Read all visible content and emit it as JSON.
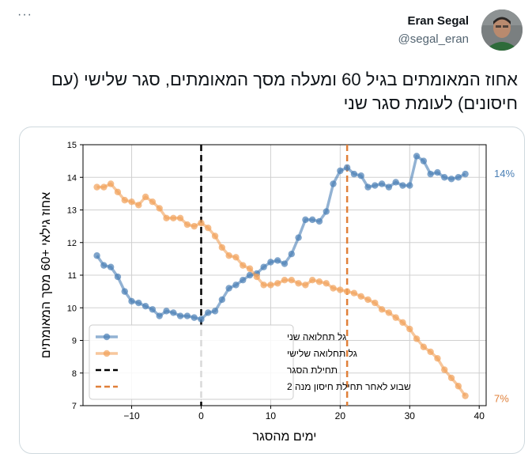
{
  "menu": {
    "icon": "more-dots-icon",
    "label": "···"
  },
  "author": {
    "name": "Eran Segal",
    "handle": "@segal_eran",
    "avatar_icon": "avatar-photo"
  },
  "tweet": {
    "text": "אחוז המאומתים בגיל 60 ומעלה מסך המאומתים, סגר שלישי (עם חיסונים) לעומת סגר שני"
  },
  "colors": {
    "blue": "#4a7fb5",
    "orange": "#f1a15a",
    "grid": "#d0d0d0",
    "black": "#000000",
    "vline_orange": "#e0803a"
  },
  "chart_data": {
    "type": "line",
    "xlabel": "ימים מהסגר",
    "ylabel": "אחוז גילאי +60 מסך המאומתים",
    "xlim": [
      -17,
      41
    ],
    "ylim": [
      7,
      15
    ],
    "xticks": [
      -10,
      0,
      10,
      20,
      30,
      40
    ],
    "xtick_labels": [
      "−10",
      "0",
      "10",
      "20",
      "30",
      "40"
    ],
    "yticks": [
      7,
      8,
      9,
      10,
      11,
      12,
      13,
      14,
      15
    ],
    "grid": true,
    "legend_position": "bottom-left",
    "annotations": [
      {
        "text": "14%",
        "series": "second_wave"
      },
      {
        "text": "7%",
        "series": "third_wave"
      }
    ],
    "vlines": [
      {
        "x": 0,
        "style": "dashed",
        "color": "black",
        "label": "תחילת הסגר"
      },
      {
        "x": 21,
        "style": "dashed",
        "color": "orange",
        "label": "שבוע לאחר תחילת חיסון מנה 2"
      }
    ],
    "series": [
      {
        "name": "גל תחלואה שני",
        "color": "blue",
        "x": [
          -15,
          -14,
          -13,
          -12,
          -11,
          -10,
          -9,
          -8,
          -7,
          -6,
          -5,
          -4,
          -3,
          -2,
          -1,
          0,
          1,
          2,
          3,
          4,
          5,
          6,
          7,
          8,
          9,
          10,
          11,
          12,
          13,
          14,
          15,
          16,
          17,
          18,
          19,
          20,
          21,
          22,
          23,
          24,
          25,
          26,
          27,
          28,
          29,
          30,
          31,
          32,
          33,
          34,
          35,
          36,
          37,
          38
        ],
        "y": [
          11.6,
          11.3,
          11.25,
          10.95,
          10.5,
          10.2,
          10.15,
          10.05,
          9.95,
          9.75,
          9.9,
          9.85,
          9.75,
          9.75,
          9.7,
          9.65,
          9.85,
          9.9,
          10.25,
          10.6,
          10.7,
          10.85,
          11.0,
          11.05,
          11.25,
          11.4,
          11.45,
          11.35,
          11.65,
          12.15,
          12.7,
          12.7,
          12.65,
          12.95,
          13.8,
          14.2,
          14.3,
          14.1,
          14.05,
          13.7,
          13.75,
          13.8,
          13.7,
          13.85,
          13.75,
          13.75,
          14.65,
          14.5,
          14.1,
          14.15,
          14.0,
          13.95,
          14.0,
          14.1
        ]
      },
      {
        "name": "גל תחלואה שלישי",
        "color": "orange",
        "x": [
          -15,
          -14,
          -13,
          -12,
          -11,
          -10,
          -9,
          -8,
          -7,
          -6,
          -5,
          -4,
          -3,
          -2,
          -1,
          0,
          1,
          2,
          3,
          4,
          5,
          6,
          7,
          8,
          9,
          10,
          11,
          12,
          13,
          14,
          15,
          16,
          17,
          18,
          19,
          20,
          21,
          22,
          23,
          24,
          25,
          26,
          27,
          28,
          29,
          30,
          31,
          32,
          33,
          34,
          35,
          36,
          37,
          38
        ],
        "y": [
          13.7,
          13.7,
          13.8,
          13.55,
          13.3,
          13.25,
          13.15,
          13.4,
          13.25,
          13.05,
          12.75,
          12.75,
          12.75,
          12.55,
          12.5,
          12.6,
          12.45,
          12.2,
          11.85,
          11.6,
          11.55,
          11.3,
          11.2,
          10.95,
          10.7,
          10.7,
          10.75,
          10.85,
          10.85,
          10.75,
          10.7,
          10.85,
          10.8,
          10.75,
          10.6,
          10.55,
          10.5,
          10.45,
          10.35,
          10.25,
          10.15,
          9.95,
          9.85,
          9.7,
          9.55,
          9.35,
          9.05,
          8.8,
          8.65,
          8.45,
          8.1,
          7.85,
          7.6,
          7.3
        ]
      }
    ]
  }
}
